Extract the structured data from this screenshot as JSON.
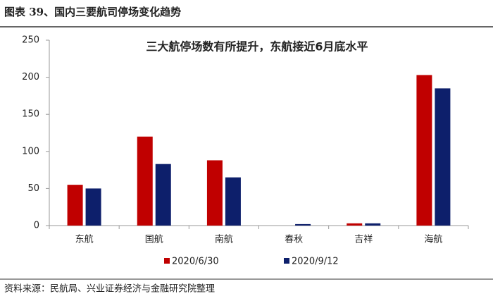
{
  "header": {
    "title": "图表 39、国内三要航司停场变化趋势"
  },
  "chart_data": {
    "type": "bar",
    "annotation": "三大航停场数有所提升，东航接近6月底水平",
    "categories": [
      "东航",
      "国航",
      "南航",
      "春秋",
      "吉祥",
      "海航"
    ],
    "series": [
      {
        "name": "2020/6/30",
        "color": "#c00000",
        "values": [
          55,
          120,
          88,
          0,
          3,
          203
        ]
      },
      {
        "name": "2020/9/12",
        "color": "#0d1f6b",
        "values": [
          50,
          83,
          65,
          2,
          3,
          185
        ]
      }
    ],
    "ylim": [
      0,
      250
    ],
    "yticks": [
      0,
      50,
      100,
      150,
      200,
      250
    ],
    "legend": "bottom"
  },
  "footer": {
    "source": "资料来源：民航局、兴业证券经济与金融研究院整理"
  }
}
